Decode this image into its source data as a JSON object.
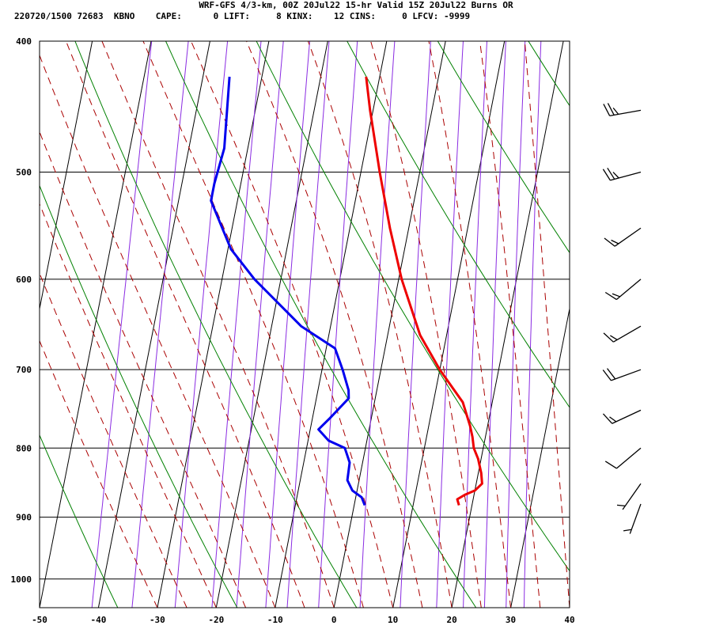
{
  "header": {
    "line1": "WRF-GFS 4/3-km, 00Z 20Jul22 15-hr Valid 15Z 20Jul22 Burns OR",
    "line2": "220720/1500 72683  KBNO    CAPE:      0 LIFT:     8 KINX:    12 CINS:     0 LFCV: -9999"
  },
  "colors": {
    "temperature": "#ee0000",
    "dewpoint": "#0000ee",
    "isotherm_grid": "#000000",
    "dry_adiabat": "#008000",
    "moist_adiabat": "#aa0000",
    "mixing_ratio": "#8a2be2",
    "wind_barb": "#000000"
  },
  "chart_data": {
    "type": "skew-t",
    "xlabel": "",
    "ylabel": "",
    "x_ticks": [
      -50,
      -40,
      -30,
      -20,
      -10,
      0,
      10,
      20,
      30,
      40
    ],
    "x_tick_labels": [
      "-50",
      "-40",
      "-30",
      "-20",
      "-10",
      "0",
      "10",
      "20",
      "30",
      "40"
    ],
    "y_ticks": [
      400,
      500,
      600,
      700,
      800,
      900,
      1000
    ],
    "y_tick_labels": [
      "400",
      "500",
      "600",
      "700",
      "800",
      "900",
      "1000"
    ],
    "xlim": [
      -50,
      40
    ],
    "ylim_pressure": [
      1050,
      400
    ],
    "pressure_scale": "log",
    "grid": true,
    "series": [
      {
        "key": "temperature",
        "points": [
          [
            882,
            17.8
          ],
          [
            873,
            17.3
          ],
          [
            866,
            18.5
          ],
          [
            860,
            20.0
          ],
          [
            850,
            21.0
          ],
          [
            835,
            20.5
          ],
          [
            815,
            19.5
          ],
          [
            800,
            18.4
          ],
          [
            785,
            17.8
          ],
          [
            770,
            17.0
          ],
          [
            740,
            15.0
          ],
          [
            700,
            10.0
          ],
          [
            660,
            5.5
          ],
          [
            600,
            0.5
          ],
          [
            550,
            -3.2
          ],
          [
            500,
            -6.8
          ],
          [
            450,
            -10.5
          ],
          [
            425,
            -12.3
          ]
        ]
      },
      {
        "key": "dewpoint",
        "points": [
          [
            882,
            1.8
          ],
          [
            870,
            1.0
          ],
          [
            860,
            -0.8
          ],
          [
            845,
            -2.0
          ],
          [
            820,
            -2.2
          ],
          [
            800,
            -3.5
          ],
          [
            790,
            -6.5
          ],
          [
            775,
            -8.6
          ],
          [
            760,
            -7.0
          ],
          [
            735,
            -4.5
          ],
          [
            725,
            -4.8
          ],
          [
            700,
            -6.5
          ],
          [
            675,
            -8.5
          ],
          [
            650,
            -15.0
          ],
          [
            600,
            -24.5
          ],
          [
            570,
            -29.5
          ],
          [
            525,
            -34.5
          ],
          [
            510,
            -34.5
          ],
          [
            480,
            -34.0
          ],
          [
            425,
            -35.5
          ]
        ]
      }
    ],
    "wind_barbs": [
      {
        "p": 880,
        "speed_kt": 5,
        "dir_deg": 200
      },
      {
        "p": 850,
        "speed_kt": 5,
        "dir_deg": 215
      },
      {
        "p": 800,
        "speed_kt": 10,
        "dir_deg": 230
      },
      {
        "p": 750,
        "speed_kt": 15,
        "dir_deg": 245
      },
      {
        "p": 700,
        "speed_kt": 20,
        "dir_deg": 250
      },
      {
        "p": 650,
        "speed_kt": 15,
        "dir_deg": 240
      },
      {
        "p": 600,
        "speed_kt": 15,
        "dir_deg": 230
      },
      {
        "p": 550,
        "speed_kt": 15,
        "dir_deg": 235
      },
      {
        "p": 500,
        "speed_kt": 25,
        "dir_deg": 255
      },
      {
        "p": 450,
        "speed_kt": 25,
        "dir_deg": 260
      }
    ]
  }
}
